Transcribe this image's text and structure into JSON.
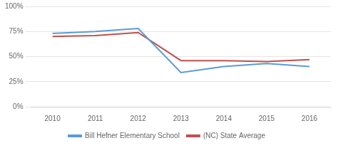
{
  "chart_data": {
    "type": "line",
    "categories": [
      "2010",
      "2011",
      "2012",
      "2013",
      "2014",
      "2015",
      "2016"
    ],
    "series": [
      {
        "name": "Bill Hefner Elementary School",
        "color": "#5b9bd5",
        "values": [
          73,
          75,
          78,
          34,
          40,
          43,
          40
        ]
      },
      {
        "name": "(NC) State Average",
        "color": "#c0504d",
        "values": [
          70,
          71,
          74,
          46,
          46,
          45,
          47
        ]
      }
    ],
    "ylim": [
      0,
      100
    ],
    "yticks": [
      {
        "value": 0,
        "label": "0%"
      },
      {
        "value": 25,
        "label": "25%"
      },
      {
        "value": 50,
        "label": "50%"
      },
      {
        "value": 75,
        "label": "75%"
      },
      {
        "value": 100,
        "label": "100%"
      }
    ],
    "grid": "y",
    "legend": "bottom"
  }
}
